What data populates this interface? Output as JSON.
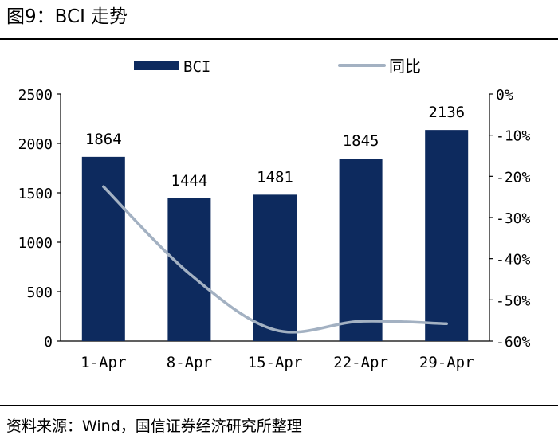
{
  "title": "图9：BCI 走势",
  "source": "资料来源：Wind，国信证券经济研究所整理",
  "colors": {
    "bar": "#0d2a5e",
    "line": "#a3b1c2",
    "axis": "#000000"
  },
  "chart_data": {
    "type": "bar",
    "categories": [
      "1-Apr",
      "8-Apr",
      "15-Apr",
      "22-Apr",
      "29-Apr"
    ],
    "series": [
      {
        "name": "BCI",
        "type": "bar",
        "axis": "left",
        "values": [
          1864,
          1444,
          1481,
          1845,
          2136
        ]
      },
      {
        "name": "同比",
        "type": "line",
        "axis": "right",
        "values": [
          -22.5,
          -43.6,
          -57.3,
          -55.2,
          -55.8
        ]
      }
    ],
    "data_labels": [
      "1864",
      "1444",
      "1481",
      "1845",
      "2136"
    ],
    "y_left": {
      "ylim": [
        0,
        2500
      ],
      "ticks": [
        0,
        500,
        1000,
        1500,
        2000,
        2500
      ],
      "tick_labels": [
        "0",
        "500",
        "1000",
        "1500",
        "2000",
        "2500"
      ]
    },
    "y_right": {
      "ylim": [
        -60,
        0
      ],
      "ticks": [
        0,
        -10,
        -20,
        -30,
        -40,
        -50,
        -60
      ],
      "tick_labels": [
        "0%",
        "-10%",
        "-20%",
        "-30%",
        "-40%",
        "-50%",
        "-60%"
      ]
    },
    "legend": {
      "placement": "top",
      "entries": [
        "BCI",
        "同比"
      ]
    },
    "grid": false
  }
}
